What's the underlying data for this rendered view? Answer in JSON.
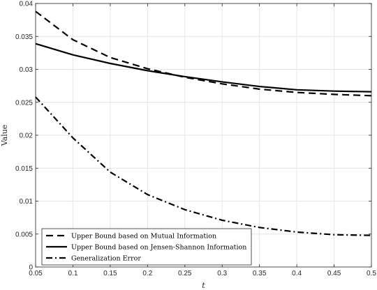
{
  "chart_data": {
    "type": "line",
    "xlabel": "t",
    "ylabel": "Value",
    "xlim": [
      0.05,
      0.5
    ],
    "ylim": [
      0,
      0.04
    ],
    "grid": true,
    "legend_position": "bottom-left",
    "x_ticks": [
      "0.05",
      "0.1",
      "0.15",
      "0.2",
      "0.25",
      "0.3",
      "0.35",
      "0.4",
      "0.45",
      "0.5"
    ],
    "y_ticks": [
      "0",
      "0.005",
      "0.01",
      "0.015",
      "0.02",
      "0.025",
      "0.03",
      "0.035",
      "0.04"
    ],
    "x": [
      0.05,
      0.1,
      0.15,
      0.2,
      0.25,
      0.3,
      0.35,
      0.4,
      0.45,
      0.5
    ],
    "series": [
      {
        "name": "Upper Bound based on Mutual Information",
        "style": "dashed",
        "color": "#000000",
        "values": [
          0.0388,
          0.0345,
          0.0318,
          0.0301,
          0.0288,
          0.0278,
          0.027,
          0.0265,
          0.0262,
          0.026
        ]
      },
      {
        "name": "Upper Bound based on Jensen-Shannon Information",
        "style": "solid",
        "color": "#000000",
        "values": [
          0.0339,
          0.0322,
          0.0309,
          0.0298,
          0.0289,
          0.0281,
          0.0274,
          0.0269,
          0.0267,
          0.0266
        ]
      },
      {
        "name": "Generalization Error",
        "style": "dashdot",
        "color": "#000000",
        "values": [
          0.0258,
          0.0196,
          0.0144,
          0.011,
          0.0087,
          0.0071,
          0.006,
          0.0053,
          0.0049,
          0.0048
        ]
      }
    ]
  }
}
